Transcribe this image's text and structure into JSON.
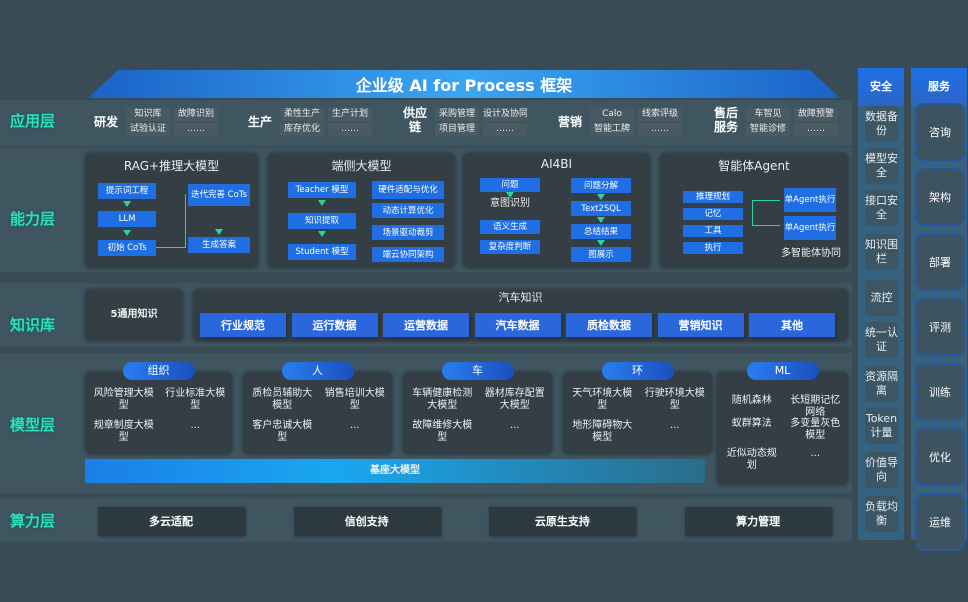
{
  "title": "企业级 AI for Process 框架",
  "layers": [
    "应用层",
    "能力层",
    "知识库",
    "模型层",
    "算力层"
  ],
  "app": [
    {
      "label": "研发",
      "items": [
        "知识库",
        "故障识别",
        "试验认证",
        "……"
      ]
    },
    {
      "label": "生产",
      "items": [
        "柔性生产",
        "生产计划",
        "库存优化",
        "……"
      ]
    },
    {
      "label": "供应链",
      "items": [
        "采购管理",
        "设计及协同",
        "项目管理",
        "……"
      ]
    },
    {
      "label": "营销",
      "items": [
        "Calo",
        "线索评级",
        "智能工牌",
        "……"
      ]
    },
    {
      "label": "售后服务",
      "items": [
        "车智见",
        "故障预警",
        "智能诊修",
        "……"
      ]
    }
  ],
  "capability": {
    "rag": {
      "title": "RAG+推理大模型",
      "steps": [
        "提示词工程",
        "LLM",
        "初始 CoTs",
        "迭代完善 CoTs",
        "生成答案"
      ]
    },
    "edge": {
      "title": "端侧大模型",
      "steps": [
        "Teacher 模型",
        "知识提取",
        "Student 模型"
      ],
      "side": [
        "硬件适配与优化",
        "动态计算优化",
        "场景驱动裁剪",
        "端云协同架构"
      ]
    },
    "ai4bi": {
      "title": "AI4BI",
      "left": [
        "问题",
        "意图识别",
        "语义生成",
        "复杂度判断"
      ],
      "right": [
        "问题分解",
        "Text2SQL",
        "总结结果",
        "图展示"
      ]
    },
    "agent": {
      "title": "智能体Agent",
      "left": [
        "推理规划",
        "记忆",
        "工具",
        "执行"
      ],
      "right": [
        "单Agent执行",
        "单Agent执行"
      ],
      "caption": "多智能体协同"
    }
  },
  "knowledge": {
    "general": "5通用知识",
    "title": "汽车知识",
    "items": [
      "行业规范",
      "运行数据",
      "运营数据",
      "汽车数据",
      "质检数据",
      "营销知识",
      "其他"
    ]
  },
  "models": [
    {
      "tag": "组织",
      "items": [
        "风险管理大模型",
        "行业标准大模型",
        "规章制度大模型",
        "..."
      ]
    },
    {
      "tag": "人",
      "items": [
        "质检员辅助大模型",
        "销售培训大模型",
        "客户忠诚大模型",
        "..."
      ]
    },
    {
      "tag": "车",
      "items": [
        "车辆健康检测大模型",
        "器材库存配置大模型",
        "故障维修大模型",
        "..."
      ]
    },
    {
      "tag": "环",
      "items": [
        "天气环境大模型",
        "行驶环境大模型",
        "地形障碍物大模型",
        "..."
      ]
    },
    {
      "tag": "ML",
      "items": [
        "随机森林",
        "长短期记忆网络",
        "蚁群算法",
        "多变量灰色模型",
        "近似动态规划",
        "..."
      ]
    }
  ],
  "base_model": "基座大模型",
  "compute": [
    "多云适配",
    "信创支持",
    "云原生支持",
    "算力管理"
  ],
  "security": {
    "title": "安全",
    "items": [
      "数据备份",
      "模型安全",
      "接口安全",
      "知识围栏",
      "流控",
      "统一认证",
      "资源隔离",
      "Token计量",
      "价值导向",
      "负载均衡"
    ]
  },
  "service": {
    "title": "服务",
    "items": [
      "咨询",
      "架构",
      "部署",
      "评测",
      "训练",
      "优化",
      "运维"
    ]
  },
  "colors": {
    "accent_blue": "#1f6ee3",
    "layer_label": "#2ee0b8",
    "background": "#394c56"
  }
}
